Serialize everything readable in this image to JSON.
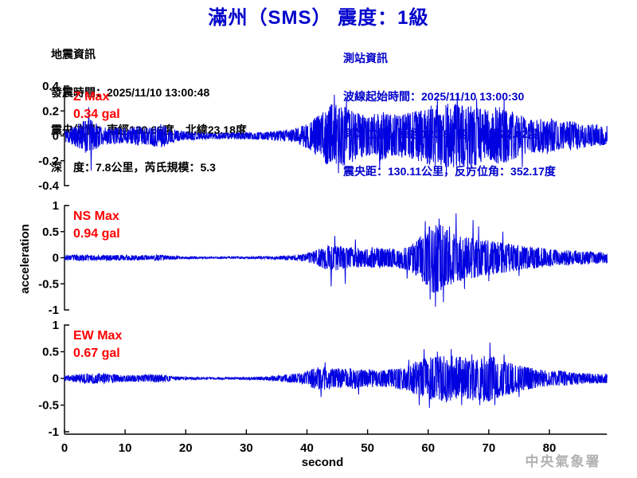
{
  "title": "滿州（SMS） 震度：1級",
  "quake_info": {
    "heading": "地震資訊",
    "lines": [
      "發震時間：2025/11/10 13:00:48",
      "震央位置：東經120.66度，北緯23.18度",
      "深　度：7.8公里，芮氏規模：5.3"
    ]
  },
  "station_info": {
    "heading": "測站資訊",
    "lines": [
      "波線起始時間：2025/11/10 13:00:30",
      "測站位置：東經120.84度，北緯22.02度",
      "震央距：130.11公里，反方位角：352.17度"
    ]
  },
  "watermark": "中央氣象署",
  "colors": {
    "title_blue": "#0000cc",
    "info_blue": "#0000cc",
    "waveform_blue": "#0000e0",
    "label_red": "#ff0000",
    "axis_black": "#000000",
    "watermark_gray": "#b2b2b2"
  },
  "chart_data": {
    "type": "line",
    "subtype": "seismogram-3-component",
    "xlabel": "second",
    "ylabel": "acceleration",
    "x_range": [
      0,
      89.5
    ],
    "x_ticks": [
      0,
      10,
      20,
      30,
      40,
      50,
      60,
      70,
      80
    ],
    "grid": false,
    "panels": [
      {
        "id": "Z",
        "label": "Z Max",
        "max_text": "0.34 gal",
        "max_value_gal": 0.34,
        "ylim": [
          -0.4,
          0.4
        ],
        "y_ticks": [
          {
            "v": 0.4,
            "t": "0.4"
          },
          {
            "v": 0.2,
            "t": "0.2"
          },
          {
            "v": 0,
            "t": "0"
          },
          {
            "v": -0.2,
            "t": "-0.2"
          },
          {
            "v": -0.4,
            "t": "-0.4"
          }
        ],
        "seed": 11,
        "envelope": [
          [
            0,
            0.05
          ],
          [
            2,
            0.09
          ],
          [
            3.5,
            0.14
          ],
          [
            5,
            0.12
          ],
          [
            6,
            0.07
          ],
          [
            8,
            0.07
          ],
          [
            10,
            0.06
          ],
          [
            12,
            0.08
          ],
          [
            14,
            0.07
          ],
          [
            16,
            0.1
          ],
          [
            17,
            0.07
          ],
          [
            19,
            0.04
          ],
          [
            22,
            0.03
          ],
          [
            26,
            0.025
          ],
          [
            30,
            0.03
          ],
          [
            33,
            0.03
          ],
          [
            36,
            0.045
          ],
          [
            38,
            0.06
          ],
          [
            40,
            0.1
          ],
          [
            42,
            0.17
          ],
          [
            44,
            0.26
          ],
          [
            46,
            0.24
          ],
          [
            48,
            0.2
          ],
          [
            50,
            0.16
          ],
          [
            52,
            0.2
          ],
          [
            54,
            0.17
          ],
          [
            56,
            0.18
          ],
          [
            58,
            0.2
          ],
          [
            60,
            0.24
          ],
          [
            62,
            0.26
          ],
          [
            64,
            0.26
          ],
          [
            66,
            0.25
          ],
          [
            68,
            0.24
          ],
          [
            70,
            0.22
          ],
          [
            72,
            0.24
          ],
          [
            74,
            0.2
          ],
          [
            76,
            0.15
          ],
          [
            78,
            0.13
          ],
          [
            80,
            0.15
          ],
          [
            82,
            0.11
          ],
          [
            84,
            0.12
          ],
          [
            86,
            0.1
          ],
          [
            88,
            0.09
          ],
          [
            89.5,
            0.08
          ]
        ],
        "spikes": [
          [
            4.0,
            0.23
          ],
          [
            4.4,
            -0.28
          ],
          [
            44.5,
            0.33
          ],
          [
            45.2,
            -0.3
          ],
          [
            46.5,
            0.3
          ],
          [
            52.0,
            -0.27
          ],
          [
            61.5,
            0.3
          ],
          [
            63.0,
            -0.3
          ],
          [
            64.8,
            0.34
          ],
          [
            66.5,
            -0.31
          ],
          [
            68.0,
            0.3
          ],
          [
            72.5,
            0.29
          ],
          [
            75.5,
            -0.25
          ]
        ]
      },
      {
        "id": "NS",
        "label": "NS Max",
        "max_text": "0.94 gal",
        "max_value_gal": 0.94,
        "ylim": [
          -1,
          1
        ],
        "y_ticks": [
          {
            "v": 1,
            "t": "1"
          },
          {
            "v": 0.5,
            "t": "0.5"
          },
          {
            "v": 0,
            "t": "0"
          },
          {
            "v": -0.5,
            "t": "-0.5"
          },
          {
            "v": -1,
            "t": "-1"
          }
        ],
        "seed": 23,
        "envelope": [
          [
            0,
            0.04
          ],
          [
            2,
            0.06
          ],
          [
            4,
            0.05
          ],
          [
            6,
            0.05
          ],
          [
            8,
            0.055
          ],
          [
            10,
            0.05
          ],
          [
            12,
            0.05
          ],
          [
            14,
            0.045
          ],
          [
            15.5,
            0.06
          ],
          [
            17,
            0.04
          ],
          [
            20,
            0.02
          ],
          [
            25,
            0.015
          ],
          [
            30,
            0.02
          ],
          [
            34,
            0.03
          ],
          [
            37,
            0.04
          ],
          [
            39,
            0.06
          ],
          [
            41,
            0.12
          ],
          [
            43,
            0.22
          ],
          [
            45,
            0.25
          ],
          [
            47,
            0.2
          ],
          [
            49,
            0.18
          ],
          [
            51,
            0.2
          ],
          [
            53,
            0.18
          ],
          [
            55,
            0.2
          ],
          [
            57,
            0.25
          ],
          [
            59,
            0.45
          ],
          [
            60,
            0.6
          ],
          [
            61,
            0.7
          ],
          [
            62,
            0.65
          ],
          [
            63,
            0.55
          ],
          [
            64,
            0.5
          ],
          [
            65,
            0.45
          ],
          [
            66,
            0.42
          ],
          [
            67,
            0.4
          ],
          [
            68,
            0.38
          ],
          [
            69,
            0.35
          ],
          [
            70,
            0.33
          ],
          [
            72,
            0.3
          ],
          [
            74,
            0.26
          ],
          [
            76,
            0.22
          ],
          [
            78,
            0.2
          ],
          [
            80,
            0.17
          ],
          [
            82,
            0.15
          ],
          [
            84,
            0.14
          ],
          [
            86,
            0.12
          ],
          [
            88,
            0.11
          ],
          [
            89.5,
            0.1
          ]
        ],
        "spikes": [
          [
            44.0,
            -0.55
          ],
          [
            44.6,
            0.42
          ],
          [
            46.3,
            -0.5
          ],
          [
            48.0,
            0.35
          ],
          [
            56.5,
            -0.4
          ],
          [
            59.5,
            0.7
          ],
          [
            60.3,
            -0.8
          ],
          [
            61.2,
            -0.94
          ],
          [
            61.8,
            0.75
          ],
          [
            62.5,
            -0.85
          ],
          [
            63.5,
            0.6
          ],
          [
            64.6,
            0.85
          ],
          [
            66.0,
            -0.6
          ],
          [
            67.4,
            0.72
          ],
          [
            68.3,
            0.6
          ],
          [
            70.0,
            -0.45
          ],
          [
            72.3,
            0.5
          ],
          [
            75.0,
            -0.35
          ]
        ]
      },
      {
        "id": "EW",
        "label": "EW Max",
        "max_text": "0.67 gal",
        "max_value_gal": 0.67,
        "ylim": [
          -1,
          1
        ],
        "y_ticks": [
          {
            "v": 1,
            "t": "1"
          },
          {
            "v": 0.5,
            "t": "0.5"
          },
          {
            "v": 0,
            "t": "0"
          },
          {
            "v": -0.5,
            "t": "-0.5"
          },
          {
            "v": -1,
            "t": "-1"
          }
        ],
        "seed": 37,
        "envelope": [
          [
            0,
            0.05
          ],
          [
            2,
            0.07
          ],
          [
            3,
            0.09
          ],
          [
            5,
            0.1
          ],
          [
            7,
            0.09
          ],
          [
            9,
            0.07
          ],
          [
            11,
            0.06
          ],
          [
            13,
            0.07
          ],
          [
            15,
            0.08
          ],
          [
            16.5,
            0.06
          ],
          [
            19,
            0.03
          ],
          [
            23,
            0.02
          ],
          [
            27,
            0.02
          ],
          [
            31,
            0.025
          ],
          [
            34,
            0.04
          ],
          [
            36,
            0.06
          ],
          [
            38,
            0.09
          ],
          [
            40,
            0.14
          ],
          [
            42,
            0.22
          ],
          [
            44,
            0.2
          ],
          [
            46,
            0.18
          ],
          [
            48,
            0.2
          ],
          [
            50,
            0.18
          ],
          [
            52,
            0.16
          ],
          [
            54,
            0.18
          ],
          [
            56,
            0.22
          ],
          [
            58,
            0.32
          ],
          [
            60,
            0.4
          ],
          [
            62,
            0.42
          ],
          [
            64,
            0.42
          ],
          [
            66,
            0.4
          ],
          [
            68,
            0.42
          ],
          [
            70,
            0.45
          ],
          [
            71,
            0.4
          ],
          [
            72,
            0.35
          ],
          [
            74,
            0.28
          ],
          [
            76,
            0.22
          ],
          [
            78,
            0.18
          ],
          [
            80,
            0.14
          ],
          [
            82,
            0.15
          ],
          [
            84,
            0.12
          ],
          [
            86,
            0.1
          ],
          [
            88,
            0.1
          ],
          [
            89.5,
            0.09
          ]
        ],
        "spikes": [
          [
            42.3,
            -0.35
          ],
          [
            43.0,
            0.3
          ],
          [
            48.5,
            -0.3
          ],
          [
            56.8,
            0.35
          ],
          [
            58.5,
            -0.5
          ],
          [
            59.3,
            0.55
          ],
          [
            60.2,
            -0.55
          ],
          [
            61.5,
            0.5
          ],
          [
            63.0,
            -0.45
          ],
          [
            63.8,
            0.55
          ],
          [
            65.5,
            -0.5
          ],
          [
            67.2,
            0.45
          ],
          [
            68.5,
            -0.5
          ],
          [
            70.2,
            0.67
          ],
          [
            71.0,
            -0.5
          ],
          [
            72.5,
            0.45
          ],
          [
            75.0,
            -0.35
          ]
        ]
      }
    ]
  }
}
